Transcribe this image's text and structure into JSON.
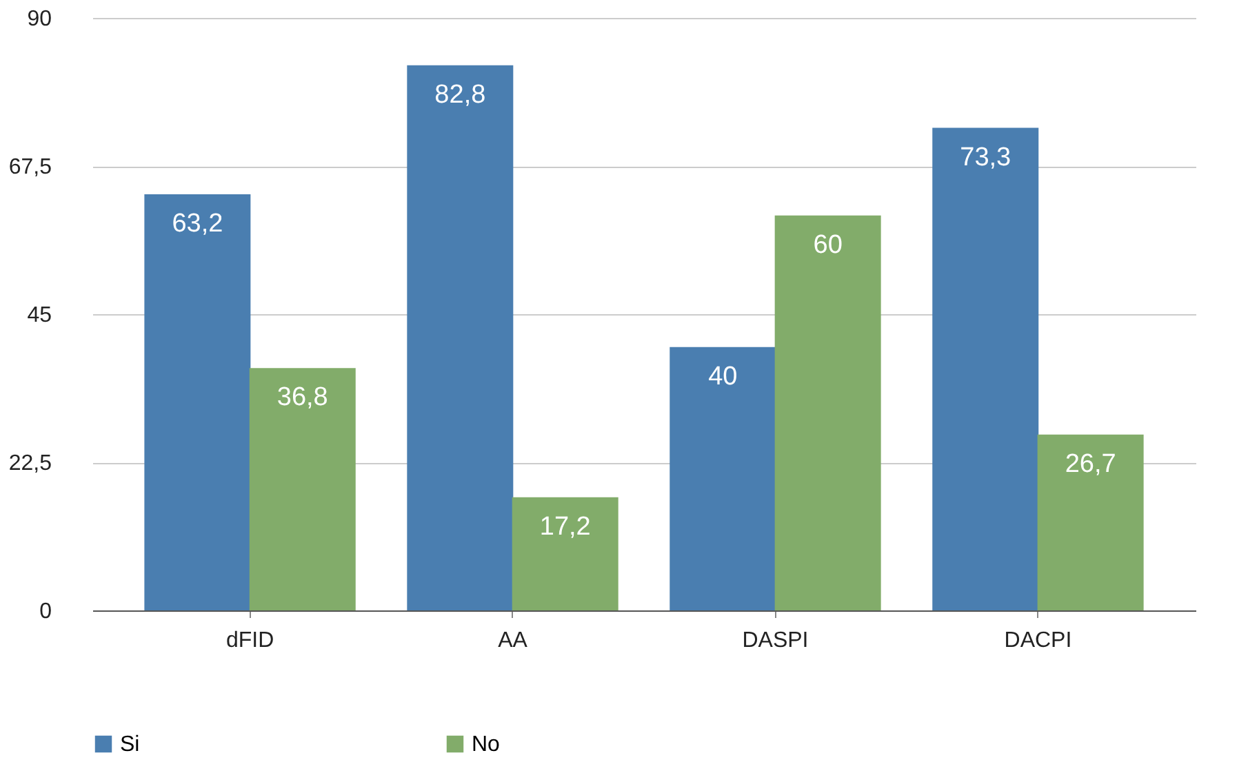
{
  "chart_data": {
    "type": "bar",
    "categories": [
      "dFID",
      "AA",
      "DASPI",
      "DACPI"
    ],
    "series": [
      {
        "name": "Si",
        "color": "#4a7eb0",
        "values": [
          63.2,
          82.8,
          40,
          73.3
        ],
        "value_labels": [
          "63,2",
          "82,8",
          "40",
          "73,3"
        ]
      },
      {
        "name": "No",
        "color": "#82ac6a",
        "values": [
          36.8,
          17.2,
          60,
          26.7
        ],
        "value_labels": [
          "36,8",
          "17,2",
          "60",
          "26,7"
        ]
      }
    ],
    "ylim": [
      0,
      90
    ],
    "yticks": [
      0,
      {
        "value": 22.5,
        "label": "22,5"
      },
      45,
      {
        "value": 67.5,
        "label": "67,5"
      },
      90
    ],
    "grid": "y",
    "legend": "bottom"
  }
}
